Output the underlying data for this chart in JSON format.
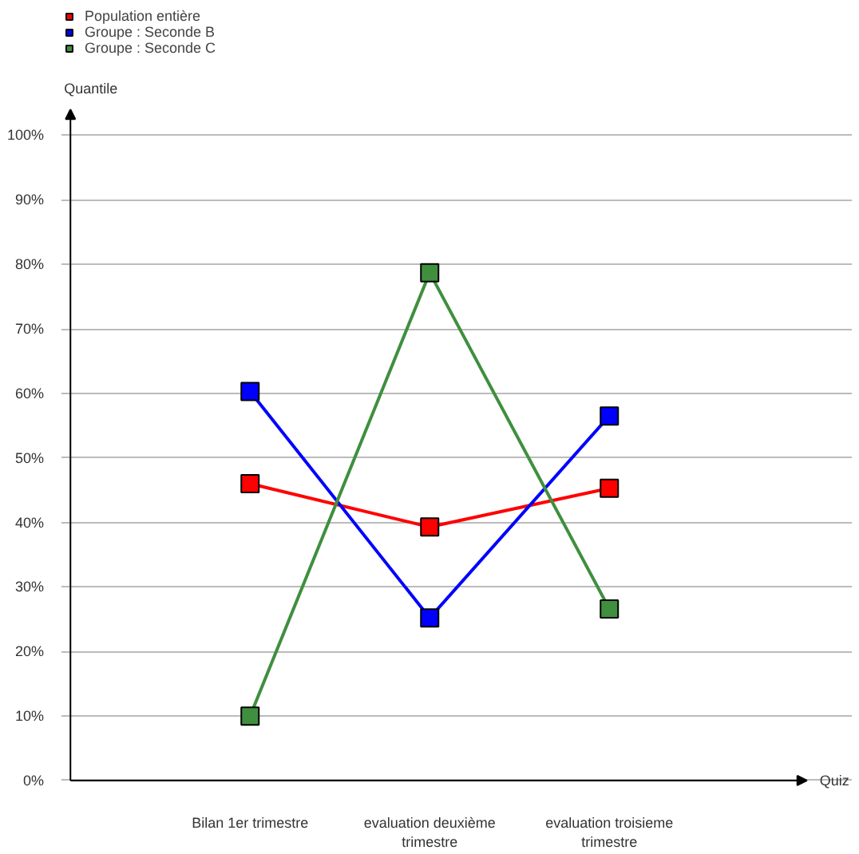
{
  "chart_data": {
    "type": "line",
    "xlabel": "Quiz",
    "ylabel": "Quantile",
    "categories": [
      "Bilan 1er trimestre",
      "evaluation deuxième trimestre",
      "evaluation troisieme trimestre"
    ],
    "series": [
      {
        "name": "Population entière",
        "color": "#ff0000",
        "values": [
          46.0,
          39.3,
          45.3
        ]
      },
      {
        "name": "Groupe : Seconde B",
        "color": "#0000ff",
        "values": [
          60.3,
          25.2,
          56.5
        ]
      },
      {
        "name": "Groupe : Seconde C",
        "color": "#3f8f3f",
        "values": [
          10.0,
          78.7,
          26.6
        ]
      }
    ],
    "ylim": [
      0,
      104
    ],
    "yticks": [
      {
        "value": 0,
        "label": "0%"
      },
      {
        "value": 10,
        "label": "10%"
      },
      {
        "value": 20,
        "label": "20%"
      },
      {
        "value": 30,
        "label": "30%"
      },
      {
        "value": 40,
        "label": "40%"
      },
      {
        "value": 50,
        "label": "50%"
      },
      {
        "value": 60,
        "label": "60%"
      },
      {
        "value": 70,
        "label": "70%"
      },
      {
        "value": 80,
        "label": "80%"
      },
      {
        "value": 90,
        "label": "90%"
      },
      {
        "value": 100,
        "label": "100%"
      }
    ],
    "marker": "square",
    "grid": "y",
    "legend": "top left"
  }
}
